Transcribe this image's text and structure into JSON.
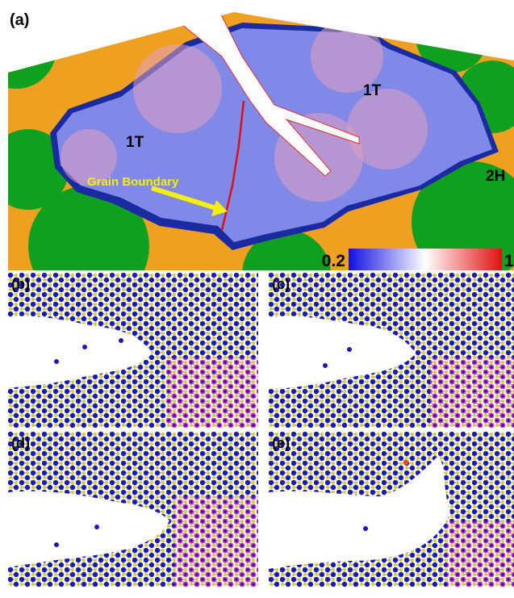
{
  "panel_a": {
    "label": "(a)",
    "regions": [
      "1T",
      "1T",
      "2H"
    ],
    "annotation": "Grain Boundary",
    "colorbar": {
      "min": 0.2,
      "max": 1
    }
  },
  "panels": [
    {
      "label": "(b)"
    },
    {
      "label": "(c)"
    },
    {
      "label": "(d)"
    },
    {
      "label": "(e)"
    }
  ]
}
